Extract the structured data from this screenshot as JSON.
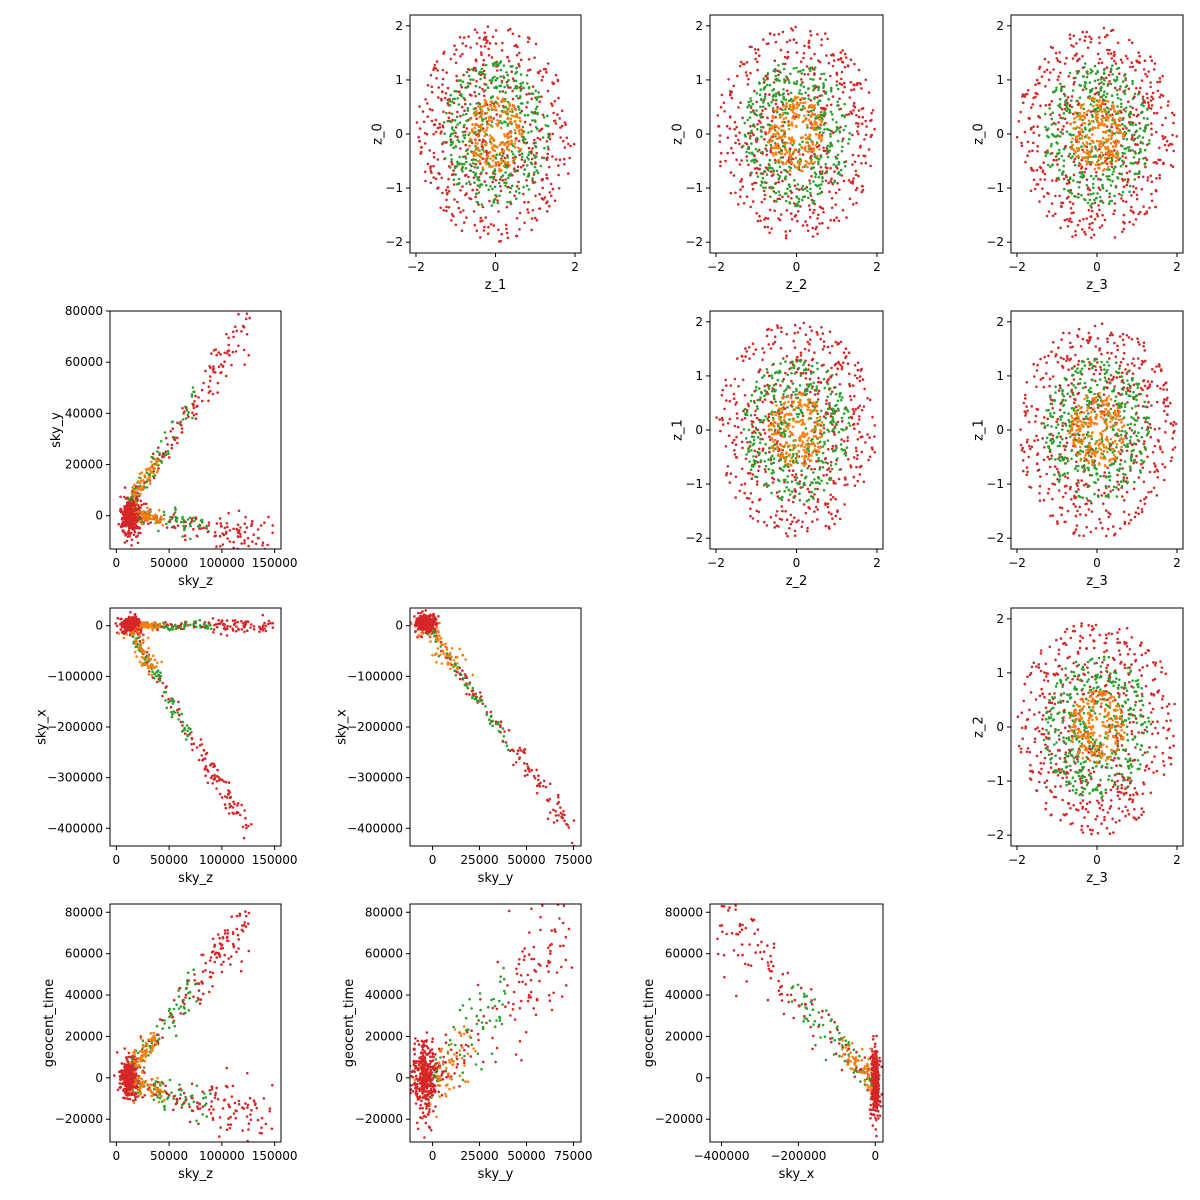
{
  "chart_data": {
    "type": "scatter",
    "figure": "corner scatter matrix, upper triangle = latent z panels, lower triangle = sky/geocent_time panels",
    "series_colors": [
      "#ff7f0e",
      "#2ca02c",
      "#d62728"
    ],
    "panels": [
      {
        "id": "z1-z0",
        "xlabel": "z_1",
        "ylabel": "z_0",
        "xlim": [
          -2.15,
          2.15
        ],
        "ylim": [
          -2.2,
          2.2
        ],
        "xticks": [
          -2,
          0,
          2
        ],
        "yticks": [
          -2,
          -1,
          0,
          1,
          2
        ],
        "shape": "rings",
        "rings": [
          0.7,
          1.35,
          2.0
        ],
        "counts": [
          220,
          420,
          560
        ]
      },
      {
        "id": "z2-z0",
        "xlabel": "z_2",
        "ylabel": "z_0",
        "xlim": [
          -2.15,
          2.15
        ],
        "ylim": [
          -2.2,
          2.2
        ],
        "xticks": [
          -2,
          0,
          2
        ],
        "yticks": [
          -2,
          -1,
          0,
          1,
          2
        ],
        "shape": "rings",
        "rings": [
          0.7,
          1.35,
          2.0
        ],
        "counts": [
          220,
          420,
          560
        ]
      },
      {
        "id": "z3-z0",
        "xlabel": "z_3",
        "ylabel": "z_0",
        "xlim": [
          -2.15,
          2.15
        ],
        "ylim": [
          -2.2,
          2.2
        ],
        "xticks": [
          -2,
          0,
          2
        ],
        "yticks": [
          -2,
          -1,
          0,
          1,
          2
        ],
        "shape": "rings",
        "rings": [
          0.7,
          1.35,
          2.0
        ],
        "counts": [
          220,
          420,
          560
        ]
      },
      {
        "id": "skyz-skyy",
        "xlabel": "sky_z",
        "ylabel": "sky_y",
        "xlim": [
          -6000,
          156000
        ],
        "ylim": [
          -13000,
          80000
        ],
        "xticks": [
          0,
          50000,
          100000,
          150000
        ],
        "yticks": [
          0,
          20000,
          40000,
          60000,
          80000
        ],
        "shape": "arms",
        "cluster": [
          14000,
          0
        ],
        "cluster_spread": [
          5000,
          4000
        ],
        "arms": [
          {
            "from": [
              14000,
              6000
            ],
            "to": [
              125000,
              75000
            ],
            "spread": 3000
          },
          {
            "from": [
              14000,
              1000
            ],
            "to": [
              148000,
              -10000
            ],
            "spread": 2000
          }
        ]
      },
      {
        "id": "z2-z1",
        "xlabel": "z_2",
        "ylabel": "z_1",
        "xlim": [
          -2.15,
          2.15
        ],
        "ylim": [
          -2.2,
          2.2
        ],
        "xticks": [
          -2,
          0,
          2
        ],
        "yticks": [
          -2,
          -1,
          0,
          1,
          2
        ],
        "shape": "rings",
        "rings": [
          0.7,
          1.35,
          2.0
        ],
        "counts": [
          220,
          420,
          560
        ]
      },
      {
        "id": "z3-z1",
        "xlabel": "z_3",
        "ylabel": "z_1",
        "xlim": [
          -2.15,
          2.15
        ],
        "ylim": [
          -2.2,
          2.2
        ],
        "xticks": [
          -2,
          0,
          2
        ],
        "yticks": [
          -2,
          -1,
          0,
          1,
          2
        ],
        "shape": "rings",
        "rings": [
          0.7,
          1.35,
          2.0
        ],
        "counts": [
          220,
          420,
          560
        ]
      },
      {
        "id": "skyz-skyx",
        "xlabel": "sky_z",
        "ylabel": "sky_x",
        "xlim": [
          -6000,
          156000
        ],
        "ylim": [
          -435000,
          35000
        ],
        "xticks": [
          0,
          50000,
          100000,
          150000
        ],
        "yticks": [
          -400000,
          -300000,
          -200000,
          -100000,
          0
        ],
        "shape": "arms",
        "cluster": [
          14000,
          2000
        ],
        "cluster_spread": [
          5000,
          8000
        ],
        "arms": [
          {
            "from": [
              14000,
              -10000
            ],
            "to": [
              125000,
              -415000
            ],
            "spread": 9000
          },
          {
            "from": [
              14000,
              0
            ],
            "to": [
              150000,
              0
            ],
            "spread": 4000
          }
        ]
      },
      {
        "id": "skyy-skyx",
        "xlabel": "sky_y",
        "ylabel": "sky_x",
        "xlim": [
          -12000,
          79000
        ],
        "ylim": [
          -435000,
          35000
        ],
        "xticks": [
          0,
          25000,
          50000,
          75000
        ],
        "yticks": [
          -400000,
          -300000,
          -200000,
          -100000,
          0
        ],
        "shape": "arms",
        "cluster": [
          -4000,
          5000
        ],
        "cluster_spread": [
          3000,
          9000
        ],
        "arms": [
          {
            "from": [
              -4000,
              5000
            ],
            "to": [
              75000,
              -410000
            ],
            "spread": 8000
          }
        ]
      },
      {
        "id": "z3-z2",
        "xlabel": "z_3",
        "ylabel": "z_2",
        "xlim": [
          -2.15,
          2.15
        ],
        "ylim": [
          -2.2,
          2.2
        ],
        "xticks": [
          -2,
          0,
          2
        ],
        "yticks": [
          -2,
          -1,
          0,
          1,
          2
        ],
        "shape": "rings",
        "rings": [
          0.7,
          1.35,
          2.0
        ],
        "counts": [
          220,
          420,
          560
        ]
      },
      {
        "id": "skyz-geocent",
        "xlabel": "sky_z",
        "ylabel": "geocent_time",
        "xlim": [
          -6000,
          156000
        ],
        "ylim": [
          -31000,
          84000
        ],
        "xticks": [
          0,
          50000,
          100000,
          150000
        ],
        "yticks": [
          -20000,
          0,
          20000,
          40000,
          60000,
          80000
        ],
        "shape": "arms",
        "cluster": [
          12000,
          0
        ],
        "cluster_spread": [
          4500,
          5000
        ],
        "arms": [
          {
            "from": [
              14000,
              5000
            ],
            "to": [
              125000,
              78000
            ],
            "spread": 3500
          },
          {
            "from": [
              14000,
              -2000
            ],
            "to": [
              148000,
              -20000
            ],
            "spread": 4000
          }
        ]
      },
      {
        "id": "skyy-geocent",
        "xlabel": "sky_y",
        "ylabel": "geocent_time",
        "xlim": [
          -12000,
          79000
        ],
        "ylim": [
          -31000,
          84000
        ],
        "xticks": [
          0,
          25000,
          50000,
          75000
        ],
        "yticks": [
          -20000,
          0,
          20000,
          40000,
          60000,
          80000
        ],
        "shape": "arms",
        "cluster": [
          -4000,
          0
        ],
        "cluster_spread": [
          4000,
          10000
        ],
        "arms": [
          {
            "from": [
              0,
              -2000
            ],
            "to": [
              72000,
              70000
            ],
            "spread": 9000
          }
        ]
      },
      {
        "id": "skyx-geocent",
        "xlabel": "sky_x",
        "ylabel": "geocent_time",
        "xlim": [
          -430000,
          20000
        ],
        "ylim": [
          -31000,
          84000
        ],
        "xticks": [
          -400000,
          -200000,
          0
        ],
        "yticks": [
          -20000,
          0,
          20000,
          40000,
          60000,
          80000
        ],
        "shape": "arms",
        "cluster": [
          0,
          -2000
        ],
        "cluster_spread": [
          6000,
          9000
        ],
        "arms": [
          {
            "from": [
              0,
              -2000
            ],
            "to": [
              -410000,
              78000
            ],
            "spread": 6000
          }
        ]
      }
    ]
  }
}
